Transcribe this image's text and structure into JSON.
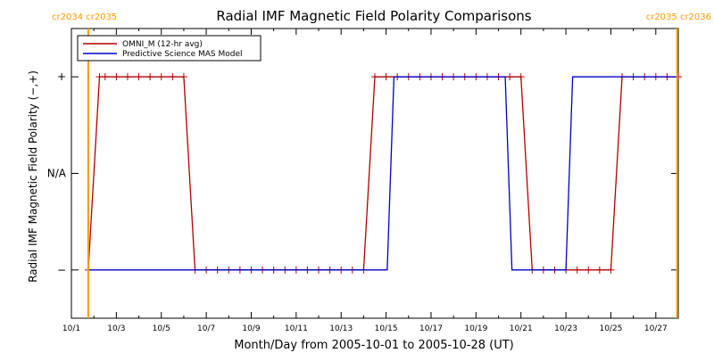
{
  "chart_data": {
    "type": "line",
    "title": "Radial IMF Magnetic Field Polarity Comparisons",
    "xlabel": "Month/Day from 2005-10-01 to 2005-10-28 (UT)",
    "ylabel": "Radial IMF Magnetic Field Polarity (−,+)",
    "xlim": [
      0,
      27
    ],
    "ylim": [
      -1.5,
      1.5
    ],
    "x_unit_note": "days after 2005-10-01 00:00 UT",
    "x_ticks": [
      {
        "value": 0,
        "label": "10/1"
      },
      {
        "value": 2,
        "label": "10/3"
      },
      {
        "value": 4,
        "label": "10/5"
      },
      {
        "value": 6,
        "label": "10/7"
      },
      {
        "value": 8,
        "label": "10/9"
      },
      {
        "value": 10,
        "label": "10/11"
      },
      {
        "value": 12,
        "label": "10/13"
      },
      {
        "value": 14,
        "label": "10/15"
      },
      {
        "value": 16,
        "label": "10/17"
      },
      {
        "value": 18,
        "label": "10/19"
      },
      {
        "value": 20,
        "label": "10/21"
      },
      {
        "value": 22,
        "label": "10/23"
      },
      {
        "value": 24,
        "label": "10/25"
      },
      {
        "value": 26,
        "label": "10/27"
      }
    ],
    "y_ticks": [
      {
        "value": 1,
        "label": "+"
      },
      {
        "value": 0,
        "label": "N/A"
      },
      {
        "value": -1,
        "label": "−"
      }
    ],
    "rotation_markers": [
      {
        "x": 0.75,
        "label": "cr2034 cr2035",
        "color": "#ff9900"
      },
      {
        "x": 26.95,
        "label": "cr2035 cr2036",
        "color": "#ff9900"
      }
    ],
    "legend_position": "top-left",
    "grid": false,
    "series": [
      {
        "name": "OMNI_M (12-hr avg)",
        "color": "#b30000",
        "marker": "plus",
        "x": [
          0.75,
          1.25,
          1.5,
          2.0,
          2.5,
          3.0,
          3.5,
          4.0,
          4.5,
          5.0,
          5.5,
          6.0,
          6.5,
          7.0,
          7.5,
          8.0,
          8.5,
          9.0,
          9.5,
          10.0,
          10.5,
          11.0,
          11.5,
          12.0,
          12.5,
          13.0,
          13.5,
          14.0,
          14.5,
          15.0,
          15.5,
          16.0,
          16.5,
          17.0,
          17.5,
          18.0,
          18.5,
          19.0,
          19.5,
          20.0,
          20.5,
          21.0,
          21.5,
          22.0,
          22.5,
          23.0,
          23.5,
          24.0,
          24.5,
          25.0,
          25.5,
          26.0,
          26.5,
          27.0
        ],
        "y": [
          -1,
          1,
          1,
          1,
          1,
          1,
          1,
          1,
          1,
          1,
          -1,
          -1,
          -1,
          -1,
          -1,
          -1,
          -1,
          -1,
          -1,
          -1,
          -1,
          -1,
          -1,
          -1,
          -1,
          -1,
          1,
          1,
          1,
          1,
          1,
          1,
          1,
          1,
          1,
          1,
          1,
          1,
          1,
          1,
          -1,
          -1,
          -1,
          -1,
          -1,
          -1,
          -1,
          -1,
          1,
          1,
          1,
          1,
          1,
          1
        ]
      },
      {
        "name": "Predictive Science MAS Model",
        "color": "#0000cc",
        "marker": "none",
        "x": [
          0.75,
          14.05,
          14.35,
          19.3,
          19.6,
          22.0,
          22.3,
          27.0
        ],
        "y": [
          -1,
          -1,
          1,
          1,
          -1,
          -1,
          1,
          1
        ]
      }
    ]
  }
}
